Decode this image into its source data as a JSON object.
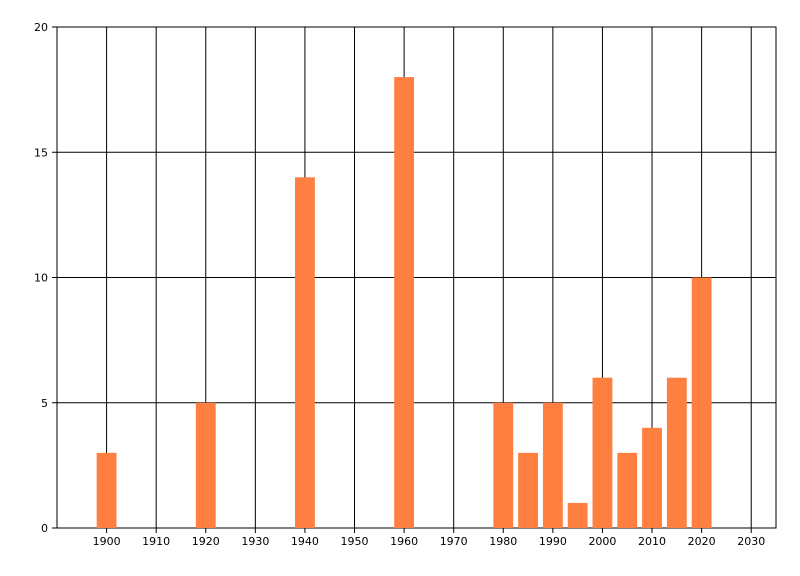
{
  "chart_data": {
    "type": "bar",
    "x": [
      1900,
      1920,
      1940,
      1960,
      1980,
      1985,
      1990,
      1995,
      2000,
      2005,
      2010,
      2015,
      2020
    ],
    "values": [
      3,
      5,
      14,
      18,
      5,
      3,
      5,
      1,
      6,
      3,
      4,
      6,
      10
    ],
    "color": "#ff7f40",
    "xlim": [
      1890,
      2035
    ],
    "xticks": [
      1900,
      1910,
      1920,
      1930,
      1940,
      1950,
      1960,
      1970,
      1980,
      1990,
      2000,
      2010,
      2020,
      2030
    ],
    "ylim": [
      0,
      20
    ],
    "yticks": [
      0,
      5,
      10,
      15,
      20
    ],
    "grid": true
  }
}
